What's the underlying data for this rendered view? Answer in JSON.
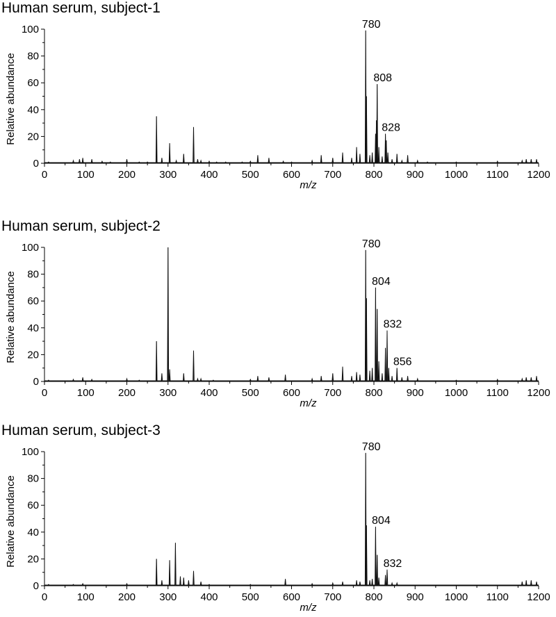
{
  "chart_data": [
    {
      "type": "line",
      "title": "Human serum, subject-1",
      "xlabel": "m/z",
      "ylabel": "Relative abundance",
      "xlim": [
        0,
        1200
      ],
      "ylim": [
        0,
        100
      ],
      "xticks": [
        0,
        100,
        200,
        300,
        400,
        500,
        600,
        700,
        800,
        900,
        1000,
        1100,
        1200
      ],
      "yticks": [
        0,
        20,
        40,
        60,
        80,
        100
      ],
      "grid": false,
      "peaks": [
        {
          "x": 10,
          "y": 1
        },
        {
          "x": 70,
          "y": 2
        },
        {
          "x": 85,
          "y": 3
        },
        {
          "x": 93,
          "y": 4
        },
        {
          "x": 115,
          "y": 3
        },
        {
          "x": 140,
          "y": 1.5
        },
        {
          "x": 160,
          "y": 1
        },
        {
          "x": 200,
          "y": 3
        },
        {
          "x": 230,
          "y": 1
        },
        {
          "x": 250,
          "y": 1
        },
        {
          "x": 272,
          "y": 35
        },
        {
          "x": 285,
          "y": 4
        },
        {
          "x": 304,
          "y": 15
        },
        {
          "x": 320,
          "y": 2
        },
        {
          "x": 338,
          "y": 7
        },
        {
          "x": 362,
          "y": 27
        },
        {
          "x": 372,
          "y": 3
        },
        {
          "x": 380,
          "y": 2
        },
        {
          "x": 400,
          "y": 1.5
        },
        {
          "x": 418,
          "y": 1
        },
        {
          "x": 440,
          "y": 1
        },
        {
          "x": 480,
          "y": 1
        },
        {
          "x": 500,
          "y": 1.5
        },
        {
          "x": 518,
          "y": 6
        },
        {
          "x": 545,
          "y": 4
        },
        {
          "x": 580,
          "y": 1.5
        },
        {
          "x": 600,
          "y": 1
        },
        {
          "x": 650,
          "y": 2
        },
        {
          "x": 672,
          "y": 6
        },
        {
          "x": 700,
          "y": 4
        },
        {
          "x": 724,
          "y": 8
        },
        {
          "x": 746,
          "y": 4
        },
        {
          "x": 758,
          "y": 12
        },
        {
          "x": 766,
          "y": 7
        },
        {
          "x": 780,
          "y": 99
        },
        {
          "x": 782,
          "y": 50
        },
        {
          "x": 790,
          "y": 6
        },
        {
          "x": 796,
          "y": 8
        },
        {
          "x": 804,
          "y": 22
        },
        {
          "x": 806,
          "y": 32
        },
        {
          "x": 808,
          "y": 59
        },
        {
          "x": 812,
          "y": 12
        },
        {
          "x": 820,
          "y": 5
        },
        {
          "x": 828,
          "y": 22
        },
        {
          "x": 830,
          "y": 17
        },
        {
          "x": 834,
          "y": 8
        },
        {
          "x": 844,
          "y": 3
        },
        {
          "x": 856,
          "y": 7
        },
        {
          "x": 868,
          "y": 2
        },
        {
          "x": 882,
          "y": 6
        },
        {
          "x": 906,
          "y": 2
        },
        {
          "x": 930,
          "y": 1
        },
        {
          "x": 1000,
          "y": 1
        },
        {
          "x": 1100,
          "y": 1.5
        },
        {
          "x": 1160,
          "y": 2
        },
        {
          "x": 1170,
          "y": 3
        },
        {
          "x": 1182,
          "y": 3
        },
        {
          "x": 1195,
          "y": 3
        }
      ],
      "annotations": [
        {
          "x": 780,
          "y": 99,
          "text": "780"
        },
        {
          "x": 808,
          "y": 59,
          "text": "808"
        },
        {
          "x": 828,
          "y": 22,
          "text": "828"
        }
      ]
    },
    {
      "type": "line",
      "title": "Human serum, subject-2",
      "xlabel": "m/z",
      "ylabel": "Relative abundance",
      "xlim": [
        0,
        1200
      ],
      "ylim": [
        0,
        100
      ],
      "xticks": [
        0,
        100,
        200,
        300,
        400,
        500,
        600,
        700,
        800,
        900,
        1000,
        1100,
        1200
      ],
      "yticks": [
        0,
        20,
        40,
        60,
        80,
        100
      ],
      "grid": false,
      "peaks": [
        {
          "x": 10,
          "y": 1
        },
        {
          "x": 70,
          "y": 1.5
        },
        {
          "x": 93,
          "y": 3
        },
        {
          "x": 115,
          "y": 1.5
        },
        {
          "x": 200,
          "y": 2
        },
        {
          "x": 230,
          "y": 1
        },
        {
          "x": 272,
          "y": 30
        },
        {
          "x": 285,
          "y": 6
        },
        {
          "x": 300,
          "y": 100
        },
        {
          "x": 304,
          "y": 9
        },
        {
          "x": 338,
          "y": 6
        },
        {
          "x": 362,
          "y": 23
        },
        {
          "x": 372,
          "y": 2
        },
        {
          "x": 380,
          "y": 2
        },
        {
          "x": 410,
          "y": 1
        },
        {
          "x": 500,
          "y": 1.5
        },
        {
          "x": 518,
          "y": 4
        },
        {
          "x": 545,
          "y": 3
        },
        {
          "x": 585,
          "y": 5
        },
        {
          "x": 650,
          "y": 2
        },
        {
          "x": 672,
          "y": 4
        },
        {
          "x": 700,
          "y": 6
        },
        {
          "x": 724,
          "y": 11
        },
        {
          "x": 746,
          "y": 4
        },
        {
          "x": 758,
          "y": 7
        },
        {
          "x": 766,
          "y": 5
        },
        {
          "x": 780,
          "y": 98
        },
        {
          "x": 782,
          "y": 62
        },
        {
          "x": 790,
          "y": 8
        },
        {
          "x": 796,
          "y": 10
        },
        {
          "x": 804,
          "y": 70
        },
        {
          "x": 808,
          "y": 54
        },
        {
          "x": 812,
          "y": 15
        },
        {
          "x": 820,
          "y": 6
        },
        {
          "x": 828,
          "y": 25
        },
        {
          "x": 832,
          "y": 38
        },
        {
          "x": 836,
          "y": 10
        },
        {
          "x": 844,
          "y": 4
        },
        {
          "x": 856,
          "y": 10
        },
        {
          "x": 868,
          "y": 3
        },
        {
          "x": 882,
          "y": 4
        },
        {
          "x": 906,
          "y": 2
        },
        {
          "x": 1000,
          "y": 1
        },
        {
          "x": 1100,
          "y": 1.5
        },
        {
          "x": 1160,
          "y": 2
        },
        {
          "x": 1170,
          "y": 3
        },
        {
          "x": 1182,
          "y": 3
        },
        {
          "x": 1195,
          "y": 4
        }
      ],
      "annotations": [
        {
          "x": 780,
          "y": 98,
          "text": "780"
        },
        {
          "x": 804,
          "y": 70,
          "text": "804"
        },
        {
          "x": 832,
          "y": 38,
          "text": "832"
        },
        {
          "x": 856,
          "y": 10,
          "text": "856"
        }
      ]
    },
    {
      "type": "line",
      "title": "Human serum, subject-3",
      "xlabel": "m/z",
      "ylabel": "Relative abundance",
      "xlim": [
        0,
        1200
      ],
      "ylim": [
        0,
        100
      ],
      "xticks": [
        0,
        100,
        200,
        300,
        400,
        500,
        600,
        700,
        800,
        900,
        1000,
        1100,
        1200
      ],
      "yticks": [
        0,
        20,
        40,
        60,
        80,
        100
      ],
      "grid": false,
      "peaks": [
        {
          "x": 10,
          "y": 1
        },
        {
          "x": 70,
          "y": 1
        },
        {
          "x": 93,
          "y": 1.5
        },
        {
          "x": 200,
          "y": 1.5
        },
        {
          "x": 272,
          "y": 20
        },
        {
          "x": 285,
          "y": 4
        },
        {
          "x": 304,
          "y": 19
        },
        {
          "x": 318,
          "y": 32
        },
        {
          "x": 330,
          "y": 7
        },
        {
          "x": 338,
          "y": 6
        },
        {
          "x": 350,
          "y": 4
        },
        {
          "x": 362,
          "y": 11
        },
        {
          "x": 380,
          "y": 3
        },
        {
          "x": 400,
          "y": 1
        },
        {
          "x": 500,
          "y": 1
        },
        {
          "x": 585,
          "y": 5
        },
        {
          "x": 650,
          "y": 1.5
        },
        {
          "x": 700,
          "y": 2
        },
        {
          "x": 724,
          "y": 3
        },
        {
          "x": 758,
          "y": 4
        },
        {
          "x": 766,
          "y": 3
        },
        {
          "x": 780,
          "y": 99
        },
        {
          "x": 782,
          "y": 45
        },
        {
          "x": 790,
          "y": 4
        },
        {
          "x": 796,
          "y": 5
        },
        {
          "x": 804,
          "y": 44
        },
        {
          "x": 808,
          "y": 23
        },
        {
          "x": 812,
          "y": 6
        },
        {
          "x": 828,
          "y": 8
        },
        {
          "x": 832,
          "y": 12
        },
        {
          "x": 844,
          "y": 2
        },
        {
          "x": 856,
          "y": 2
        },
        {
          "x": 1160,
          "y": 3
        },
        {
          "x": 1170,
          "y": 4
        },
        {
          "x": 1182,
          "y": 4
        },
        {
          "x": 1195,
          "y": 3
        }
      ],
      "annotations": [
        {
          "x": 780,
          "y": 99,
          "text": "780"
        },
        {
          "x": 804,
          "y": 44,
          "text": "804"
        },
        {
          "x": 832,
          "y": 12,
          "text": "832"
        }
      ]
    }
  ]
}
